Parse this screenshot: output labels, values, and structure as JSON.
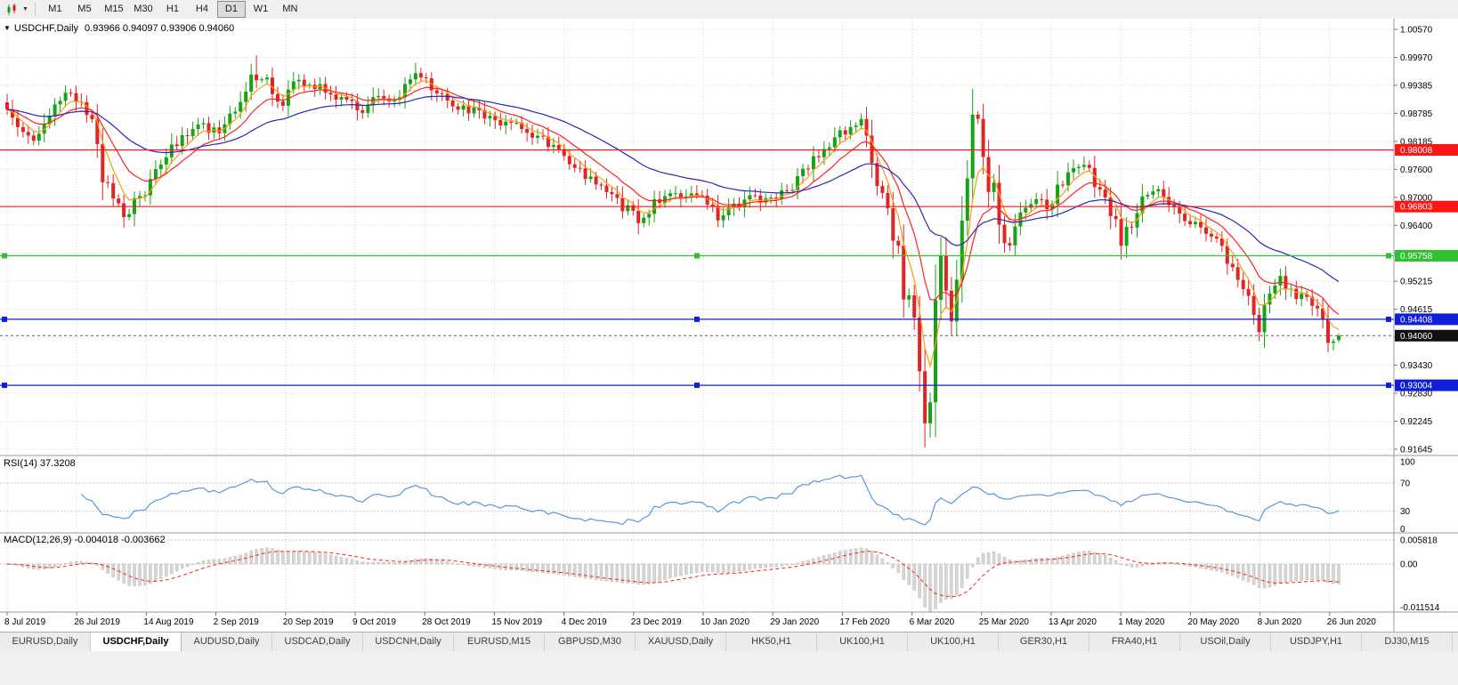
{
  "toolbar": {
    "timeframes": [
      {
        "label": "M1",
        "active": false
      },
      {
        "label": "M5",
        "active": false
      },
      {
        "label": "M15",
        "active": false
      },
      {
        "label": "M30",
        "active": false
      },
      {
        "label": "H1",
        "active": false
      },
      {
        "label": "H4",
        "active": false
      },
      {
        "label": "D1",
        "active": true
      },
      {
        "label": "W1",
        "active": false
      },
      {
        "label": "MN",
        "active": false
      }
    ]
  },
  "chart": {
    "title_symbol": "USDCHF,Daily",
    "title_ohlc": "0.93966 0.94097 0.93906 0.94060"
  },
  "chart_data": {
    "type": "candlestick",
    "symbol": "USDCHF",
    "timeframe": "Daily",
    "bars": 252,
    "ohlc_current": {
      "open": 0.93966,
      "high": 0.94097,
      "low": 0.93906,
      "close": 0.9406
    },
    "price_axis_ticks": [
      "1.00570",
      "0.99970",
      "0.99385",
      "0.98785",
      "0.98185",
      "0.97600",
      "0.97000",
      "0.96400",
      "0.95815",
      "0.95215",
      "0.94615",
      "0.94030",
      "0.93430",
      "0.92830",
      "0.92245",
      "0.91645"
    ],
    "price_axis_range": [
      1.0057,
      0.91645
    ],
    "horizontal_lines": [
      {
        "value": 0.98008,
        "label": "0.98008",
        "color": "#ff1515",
        "handles": false
      },
      {
        "value": 0.96803,
        "label": "0.96803",
        "color": "#ff1515",
        "handles": false
      },
      {
        "value": 0.95758,
        "label": "0.95758",
        "color": "#2fc12f",
        "handles": true
      },
      {
        "value": 0.94408,
        "label": "0.94408",
        "color": "#0f1fd8",
        "handles": true
      },
      {
        "value": 0.93004,
        "label": "0.93004",
        "color": "#0f1fd8",
        "handles": true
      }
    ],
    "current_price": {
      "value": 0.9406,
      "label": "0.94060"
    },
    "date_labels": [
      "8 Jul 2019",
      "26 Jul 2019",
      "14 Aug 2019",
      "2 Sep 2019",
      "20 Sep 2019",
      "9 Oct 2019",
      "28 Oct 2019",
      "15 Nov 2019",
      "4 Dec 2019",
      "23 Dec 2019",
      "10 Jan 2020",
      "29 Jan 2020",
      "17 Feb 2020",
      "6 Mar 2020",
      "25 Mar 2020",
      "13 Apr 2020",
      "1 May 2020",
      "20 May 2020",
      "8 Jun 2020",
      "26 Jun 2020"
    ],
    "price_anchors": [
      [
        0,
        0.9885
      ],
      [
        3,
        0.985
      ],
      [
        5,
        0.9835
      ],
      [
        8,
        0.9872
      ],
      [
        12,
        0.9928
      ],
      [
        14,
        0.99
      ],
      [
        16,
        0.986
      ],
      [
        18,
        0.9748
      ],
      [
        20,
        0.97
      ],
      [
        22,
        0.9663
      ],
      [
        24,
        0.969
      ],
      [
        26,
        0.9722
      ],
      [
        28,
        0.9772
      ],
      [
        31,
        0.98
      ],
      [
        34,
        0.9838
      ],
      [
        36,
        0.986
      ],
      [
        38,
        0.9846
      ],
      [
        40,
        0.985
      ],
      [
        43,
        0.9896
      ],
      [
        46,
        0.9952
      ],
      [
        48,
        0.9962
      ],
      [
        50,
        0.993
      ],
      [
        52,
        0.9902
      ],
      [
        55,
        0.9945
      ],
      [
        58,
        0.994
      ],
      [
        61,
        0.9925
      ],
      [
        64,
        0.99
      ],
      [
        67,
        0.9882
      ],
      [
        70,
        0.9912
      ],
      [
        73,
        0.9892
      ],
      [
        76,
        0.995
      ],
      [
        78,
        0.9962
      ],
      [
        80,
        0.9935
      ],
      [
        83,
        0.9908
      ],
      [
        86,
        0.989
      ],
      [
        89,
        0.9878
      ],
      [
        92,
        0.9856
      ],
      [
        95,
        0.9868
      ],
      [
        98,
        0.984
      ],
      [
        101,
        0.9822
      ],
      [
        104,
        0.9792
      ],
      [
        107,
        0.9775
      ],
      [
        110,
        0.9735
      ],
      [
        113,
        0.9705
      ],
      [
        116,
        0.9682
      ],
      [
        119,
        0.9657
      ],
      [
        122,
        0.9688
      ],
      [
        125,
        0.9716
      ],
      [
        128,
        0.9702
      ],
      [
        131,
        0.9692
      ],
      [
        134,
        0.9662
      ],
      [
        137,
        0.968
      ],
      [
        140,
        0.9702
      ],
      [
        143,
        0.9692
      ],
      [
        146,
        0.97
      ],
      [
        149,
        0.974
      ],
      [
        152,
        0.9778
      ],
      [
        155,
        0.9812
      ],
      [
        158,
        0.984
      ],
      [
        161,
        0.9852
      ],
      [
        163,
        0.98
      ],
      [
        165,
        0.97
      ],
      [
        167,
        0.9638
      ],
      [
        169,
        0.952
      ],
      [
        171,
        0.9405
      ],
      [
        173,
        0.924
      ],
      [
        174,
        0.932
      ],
      [
        175,
        0.945
      ],
      [
        176,
        0.954
      ],
      [
        177,
        0.947
      ],
      [
        178,
        0.942
      ],
      [
        179,
        0.9555
      ],
      [
        180,
        0.965
      ],
      [
        181,
        0.978
      ],
      [
        182,
        0.9872
      ],
      [
        183,
        0.986
      ],
      [
        184,
        0.983
      ],
      [
        185,
        0.974
      ],
      [
        186,
        0.9695
      ],
      [
        188,
        0.9585
      ],
      [
        190,
        0.964
      ],
      [
        192,
        0.968
      ],
      [
        194,
        0.9705
      ],
      [
        196,
        0.968
      ],
      [
        198,
        0.9712
      ],
      [
        200,
        0.974
      ],
      [
        202,
        0.9768
      ],
      [
        204,
        0.9752
      ],
      [
        206,
        0.9722
      ],
      [
        208,
        0.967
      ],
      [
        210,
        0.9615
      ],
      [
        212,
        0.9655
      ],
      [
        214,
        0.97
      ],
      [
        216,
        0.9722
      ],
      [
        218,
        0.9705
      ],
      [
        220,
        0.968
      ],
      [
        222,
        0.9662
      ],
      [
        224,
        0.9638
      ],
      [
        226,
        0.9612
      ],
      [
        228,
        0.96
      ],
      [
        230,
        0.9572
      ],
      [
        232,
        0.954
      ],
      [
        234,
        0.9498
      ],
      [
        236,
        0.943
      ],
      [
        238,
        0.9478
      ],
      [
        240,
        0.9522
      ],
      [
        242,
        0.9508
      ],
      [
        244,
        0.9485
      ],
      [
        246,
        0.9468
      ],
      [
        248,
        0.9435
      ],
      [
        250,
        0.9385
      ],
      [
        251,
        0.9406
      ]
    ],
    "wick_extremes": [
      {
        "bar": 173,
        "low": 0.9168
      },
      {
        "bar": 47,
        "high": 1.0002
      },
      {
        "bar": 77,
        "high": 0.9986
      }
    ],
    "moving_averages": [
      {
        "period": 5,
        "color": "#ff9c10"
      },
      {
        "period": 12,
        "color": "#ff2020"
      },
      {
        "period": 34,
        "color": "#2828b8"
      }
    ],
    "rsi": {
      "label": "RSI(14)",
      "value": "37.3208",
      "levels": [
        "100",
        "70",
        "30",
        "0"
      ],
      "line_color": "#4a90d9"
    },
    "macd": {
      "label": "MACD(12,26,9)",
      "values": "-0.004018 -0.003662",
      "axis_ticks": [
        "0.005818",
        "0.00",
        "-0.011514"
      ],
      "histogram_color": "#d6d6d6",
      "signal_color": "#ff2020"
    }
  },
  "tabs": {
    "items": [
      {
        "label": "EURUSD,Daily",
        "active": false
      },
      {
        "label": "USDCHF,Daily",
        "active": true
      },
      {
        "label": "AUDUSD,Daily",
        "active": false
      },
      {
        "label": "USDCAD,Daily",
        "active": false
      },
      {
        "label": "USDCNH,Daily",
        "active": false
      },
      {
        "label": "EURUSD,M15",
        "active": false
      },
      {
        "label": "GBPUSD,M30",
        "active": false
      },
      {
        "label": "XAUUSD,Daily",
        "active": false
      },
      {
        "label": "HK50,H1",
        "active": false
      },
      {
        "label": "UK100,H1",
        "active": false
      },
      {
        "label": "UK100,H1",
        "active": false
      },
      {
        "label": "GER30,H1",
        "active": false
      },
      {
        "label": "FRA40,H1",
        "active": false
      },
      {
        "label": "USOil,Daily",
        "active": false
      },
      {
        "label": "USDJPY,H1",
        "active": false
      },
      {
        "label": "DJ30,M15",
        "active": false
      }
    ]
  }
}
